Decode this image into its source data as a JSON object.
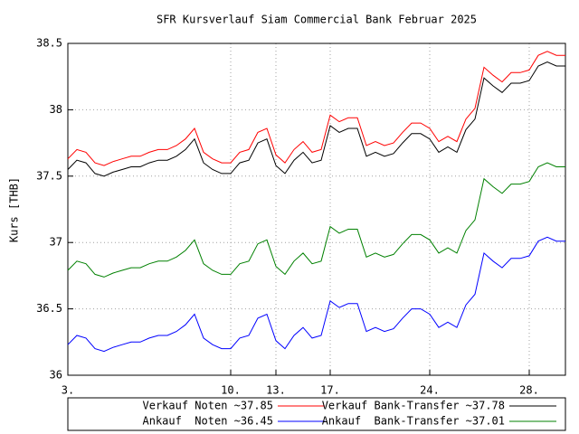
{
  "chart_data": {
    "type": "line",
    "title": "SFR Kursverlauf Siam Commercial Bank Februar 2025",
    "y_label": "Kurs [THB]",
    "xlim": [
      0,
      55
    ],
    "xticks": [
      {
        "value": 0,
        "label": "3."
      },
      {
        "value": 18,
        "label": "10."
      },
      {
        "value": 23,
        "label": "13."
      },
      {
        "value": 29,
        "label": "17."
      },
      {
        "value": 40,
        "label": "24."
      },
      {
        "value": 51,
        "label": "28."
      }
    ],
    "ylim": [
      36,
      38.5
    ],
    "yticks": [
      36,
      36.5,
      37,
      37.5,
      38,
      38.5
    ],
    "grid": true,
    "series": [
      {
        "name": "Verkauf Noten ~37.85",
        "color": "#ff0000",
        "values": [
          37.63,
          37.7,
          37.68,
          37.6,
          37.58,
          37.61,
          37.63,
          37.65,
          37.65,
          37.68,
          37.7,
          37.7,
          37.73,
          37.78,
          37.86,
          37.68,
          37.63,
          37.6,
          37.6,
          37.68,
          37.7,
          37.83,
          37.86,
          37.66,
          37.6,
          37.7,
          37.76,
          37.68,
          37.7,
          37.96,
          37.91,
          37.94,
          37.94,
          37.73,
          37.76,
          37.73,
          37.75,
          37.83,
          37.9,
          37.9,
          37.86,
          37.76,
          37.8,
          37.76,
          37.93,
          38.01,
          38.32,
          38.26,
          38.21,
          38.28,
          38.28,
          38.3,
          38.41,
          38.44,
          38.41,
          38.41
        ]
      },
      {
        "name": "Verkauf Bank-Transfer ~37.78",
        "color": "#000000",
        "values": [
          37.55,
          37.62,
          37.6,
          37.52,
          37.5,
          37.53,
          37.55,
          37.57,
          37.57,
          37.6,
          37.62,
          37.62,
          37.65,
          37.7,
          37.78,
          37.6,
          37.55,
          37.52,
          37.52,
          37.6,
          37.62,
          37.75,
          37.78,
          37.58,
          37.52,
          37.62,
          37.68,
          37.6,
          37.62,
          37.88,
          37.83,
          37.86,
          37.86,
          37.65,
          37.68,
          37.65,
          37.67,
          37.75,
          37.82,
          37.82,
          37.78,
          37.68,
          37.72,
          37.68,
          37.85,
          37.93,
          38.24,
          38.18,
          38.13,
          38.2,
          38.2,
          38.22,
          38.33,
          38.36,
          38.33,
          38.33
        ]
      },
      {
        "name": "Ankauf  Noten ~36.45",
        "color": "#0000ff",
        "values": [
          36.23,
          36.3,
          36.28,
          36.2,
          36.18,
          36.21,
          36.23,
          36.25,
          36.25,
          36.28,
          36.3,
          36.3,
          36.33,
          36.38,
          36.46,
          36.28,
          36.23,
          36.2,
          36.2,
          36.28,
          36.3,
          36.43,
          36.46,
          36.26,
          36.2,
          36.3,
          36.36,
          36.28,
          36.3,
          36.56,
          36.51,
          36.54,
          36.54,
          36.33,
          36.36,
          36.33,
          36.35,
          36.43,
          36.5,
          36.5,
          36.46,
          36.36,
          36.4,
          36.36,
          36.53,
          36.61,
          36.92,
          36.86,
          36.81,
          36.88,
          36.88,
          36.9,
          37.01,
          37.04,
          37.01,
          37.01
        ]
      },
      {
        "name": "Ankauf  Bank-Transfer ~37.01",
        "color": "#008000",
        "values": [
          36.79,
          36.86,
          36.84,
          36.76,
          36.74,
          36.77,
          36.79,
          36.81,
          36.81,
          36.84,
          36.86,
          36.86,
          36.89,
          36.94,
          37.02,
          36.84,
          36.79,
          36.76,
          36.76,
          36.84,
          36.86,
          36.99,
          37.02,
          36.82,
          36.76,
          36.86,
          36.92,
          36.84,
          36.86,
          37.12,
          37.07,
          37.1,
          37.1,
          36.89,
          36.92,
          36.89,
          36.91,
          36.99,
          37.06,
          37.06,
          37.02,
          36.92,
          36.96,
          36.92,
          37.09,
          37.17,
          37.48,
          37.42,
          37.37,
          37.44,
          37.44,
          37.46,
          37.57,
          37.6,
          37.57,
          37.57
        ]
      }
    ]
  }
}
